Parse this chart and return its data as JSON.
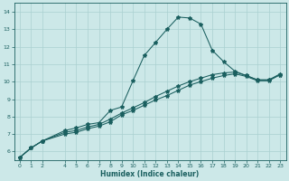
{
  "xlabel": "Humidex (Indice chaleur)",
  "bg_color": "#cce8e8",
  "grid_color": "#aad0d0",
  "line_color": "#1a5f5f",
  "xlim": [
    -0.5,
    23.5
  ],
  "ylim": [
    5.5,
    14.5
  ],
  "xtick_vals": [
    0,
    1,
    2,
    4,
    5,
    6,
    7,
    8,
    9,
    10,
    11,
    12,
    13,
    14,
    15,
    16,
    17,
    18,
    19,
    20,
    21,
    22,
    23
  ],
  "xtick_labels": [
    "0",
    "1",
    "2",
    "4",
    "5",
    "6",
    "7",
    "8",
    "9",
    "10",
    "11",
    "12",
    "13",
    "14",
    "15",
    "16",
    "17",
    "18",
    "19",
    "20",
    "21",
    "22",
    "23"
  ],
  "ytick_vals": [
    6,
    7,
    8,
    9,
    10,
    11,
    12,
    13,
    14
  ],
  "line1_x": [
    0,
    1,
    2,
    4,
    5,
    6,
    7,
    8,
    9,
    10,
    11,
    12,
    13,
    14,
    15,
    16,
    17,
    18,
    19,
    20,
    21,
    22,
    23
  ],
  "line1_y": [
    5.65,
    6.2,
    6.6,
    7.2,
    7.35,
    7.55,
    7.65,
    8.35,
    8.55,
    10.05,
    11.5,
    12.25,
    13.0,
    13.7,
    13.65,
    13.3,
    11.8,
    11.15,
    10.6,
    10.35,
    10.1,
    10.1,
    10.4
  ],
  "line2_x": [
    0,
    1,
    2,
    4,
    5,
    6,
    7,
    8,
    9,
    10,
    11,
    12,
    13,
    14,
    15,
    16,
    17,
    18,
    19,
    20,
    21,
    22,
    23
  ],
  "line2_y": [
    5.65,
    6.2,
    6.6,
    7.1,
    7.2,
    7.4,
    7.55,
    7.85,
    8.2,
    8.5,
    8.8,
    9.15,
    9.45,
    9.75,
    10.0,
    10.2,
    10.4,
    10.5,
    10.55,
    10.35,
    10.1,
    10.1,
    10.45
  ],
  "line3_x": [
    0,
    1,
    2,
    4,
    5,
    6,
    7,
    8,
    9,
    10,
    11,
    12,
    13,
    14,
    15,
    16,
    17,
    18,
    19,
    20,
    21,
    22,
    23
  ],
  "line3_y": [
    5.65,
    6.2,
    6.6,
    7.0,
    7.1,
    7.3,
    7.45,
    7.7,
    8.1,
    8.35,
    8.65,
    8.95,
    9.2,
    9.5,
    9.8,
    10.0,
    10.2,
    10.35,
    10.45,
    10.3,
    10.05,
    10.05,
    10.4
  ]
}
